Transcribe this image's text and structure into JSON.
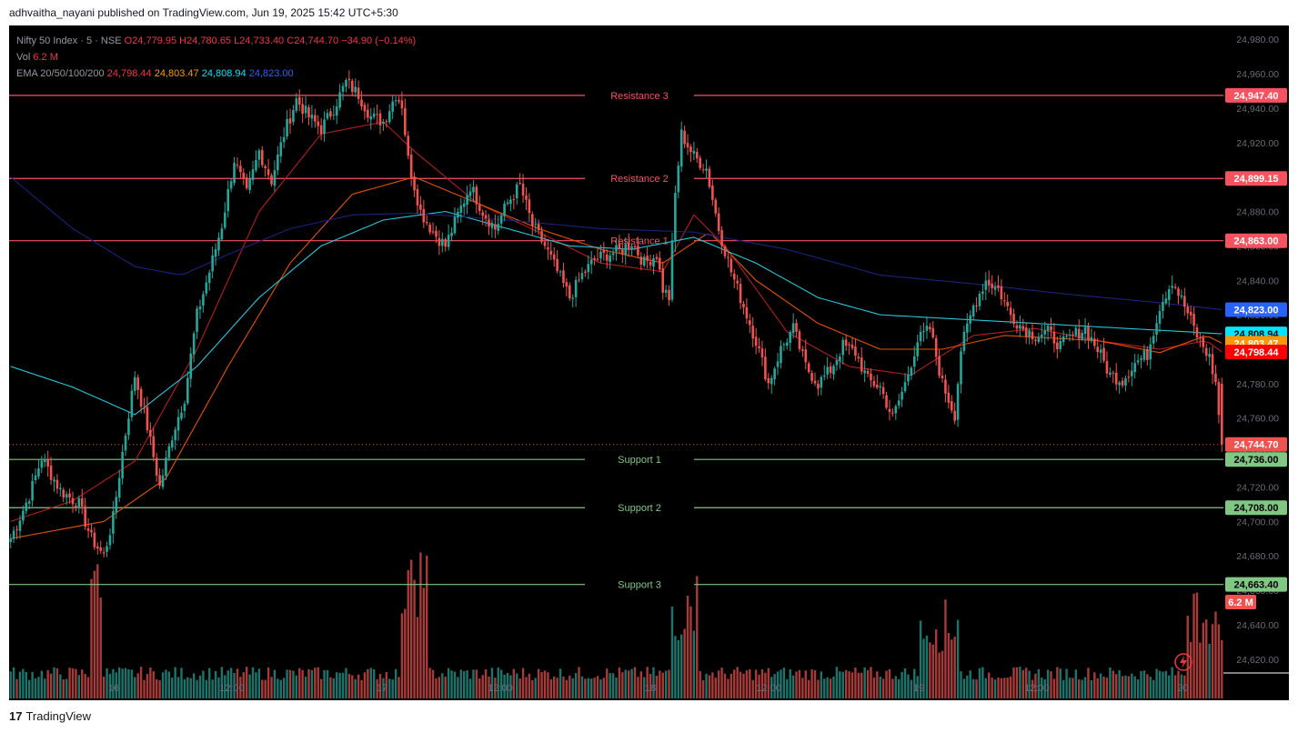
{
  "publisher": "adhvaitha_nayani published on TradingView.com, Jun 19, 2025 15:42 UTC+5:30",
  "footer": {
    "logo_mark": "17",
    "logo_text": "TradingView"
  },
  "legend": {
    "symbol": "Nifty 50 Index · 5 · NSE",
    "ohlc_o": "O24,779.95",
    "ohlc_h": "H24,780.65",
    "ohlc_l": "L24,733.40",
    "ohlc_c": "C24,744.70",
    "change": "−34.90 (−0.14%)",
    "vol_label": "Vol",
    "vol_value": "6.2 M",
    "ema_label": "EMA 20/50/100/200",
    "ema20": "24,798.44",
    "ema50": "24,803.47",
    "ema100": "24,808.94",
    "ema200": "24,823.00"
  },
  "colors": {
    "background": "#000000",
    "up": "#26a69a",
    "down": "#ef5350",
    "resistance": "#f7525f",
    "support": "#81c784",
    "ema20": "#b71c1c",
    "ema50": "#e65100",
    "ema100": "#26c6da",
    "ema200": "#1a237e"
  },
  "chart_data": {
    "type": "candlestick",
    "title": "Nifty 50 Index · 5 · NSE",
    "x_ticks": [
      "16",
      "12:00",
      "17",
      "12:00",
      "18",
      "12:00",
      "19",
      "12:00",
      "20"
    ],
    "y_ticks": [
      "24,980.00",
      "24,960.00",
      "24,940.00",
      "24,920.00",
      "24,900.00",
      "24,880.00",
      "24,860.00",
      "24,840.00",
      "24,820.00",
      "24,800.00",
      "24,780.00",
      "24,760.00",
      "24,740.00",
      "24,720.00",
      "24,700.00",
      "24,680.00",
      "24,660.00",
      "24,640.00",
      "24,620.00"
    ],
    "ylim": [
      24612,
      24988
    ],
    "levels": [
      {
        "name": "Resistance 3",
        "value": 24947.4,
        "label": "24,947.40",
        "kind": "resistance"
      },
      {
        "name": "Resistance 2",
        "value": 24899.15,
        "label": "24,899.15",
        "kind": "resistance"
      },
      {
        "name": "Resistance 1",
        "value": 24863.0,
        "label": "24,863.00",
        "kind": "resistance"
      },
      {
        "name": "Support 1",
        "value": 24736.0,
        "label": "24,736.00",
        "kind": "support"
      },
      {
        "name": "Support 2",
        "value": 24708.0,
        "label": "24,708.00",
        "kind": "support"
      },
      {
        "name": "Support 3",
        "value": 24663.4,
        "label": "24,663.40",
        "kind": "support"
      }
    ],
    "last_price": {
      "value": 24744.7,
      "label": "24,744.70"
    },
    "ema_tags": [
      {
        "value": 24823.0,
        "label": "24,823.00",
        "color": "#2962ff"
      },
      {
        "value": 24808.94,
        "label": "24,808.94",
        "color": "#00e5ff"
      },
      {
        "value": 24803.47,
        "label": "24,803.47",
        "color": "#ff9800"
      },
      {
        "value": 24798.44,
        "label": "24,798.44",
        "color": "#ff0000"
      }
    ],
    "volume_tag": "6.2 M",
    "anchors": [
      [
        0,
        24690
      ],
      [
        6,
        24715
      ],
      [
        10,
        24737
      ],
      [
        16,
        24718
      ],
      [
        22,
        24710
      ],
      [
        26,
        24690
      ],
      [
        30,
        24680
      ],
      [
        33,
        24702
      ],
      [
        36,
        24740
      ],
      [
        40,
        24785
      ],
      [
        44,
        24755
      ],
      [
        48,
        24720
      ],
      [
        52,
        24750
      ],
      [
        56,
        24772
      ],
      [
        60,
        24820
      ],
      [
        64,
        24845
      ],
      [
        68,
        24872
      ],
      [
        72,
        24910
      ],
      [
        76,
        24890
      ],
      [
        80,
        24915
      ],
      [
        84,
        24898
      ],
      [
        88,
        24925
      ],
      [
        92,
        24945
      ],
      [
        96,
        24935
      ],
      [
        100,
        24928
      ],
      [
        104,
        24940
      ],
      [
        108,
        24955
      ],
      [
        112,
        24948
      ],
      [
        116,
        24935
      ],
      [
        120,
        24932
      ],
      [
        124,
        24948
      ],
      [
        126,
        24942
      ],
      [
        128,
        24910
      ],
      [
        132,
        24880
      ],
      [
        136,
        24868
      ],
      [
        140,
        24860
      ],
      [
        144,
        24878
      ],
      [
        148,
        24895
      ],
      [
        152,
        24880
      ],
      [
        156,
        24870
      ],
      [
        160,
        24885
      ],
      [
        164,
        24895
      ],
      [
        168,
        24872
      ],
      [
        172,
        24860
      ],
      [
        176,
        24845
      ],
      [
        180,
        24830
      ],
      [
        184,
        24843
      ],
      [
        188,
        24852
      ],
      [
        192,
        24855
      ],
      [
        196,
        24857
      ],
      [
        200,
        24862
      ],
      [
        204,
        24850
      ],
      [
        208,
        24855
      ],
      [
        210,
        24835
      ],
      [
        212,
        24830
      ],
      [
        214,
        24890
      ],
      [
        216,
        24925
      ],
      [
        220,
        24912
      ],
      [
        224,
        24905
      ],
      [
        228,
        24870
      ],
      [
        232,
        24845
      ],
      [
        236,
        24825
      ],
      [
        240,
        24805
      ],
      [
        244,
        24780
      ],
      [
        248,
        24800
      ],
      [
        252,
        24812
      ],
      [
        256,
        24790
      ],
      [
        260,
        24780
      ],
      [
        264,
        24788
      ],
      [
        268,
        24802
      ],
      [
        272,
        24798
      ],
      [
        276,
        24782
      ],
      [
        280,
        24778
      ],
      [
        284,
        24760
      ],
      [
        288,
        24780
      ],
      [
        292,
        24805
      ],
      [
        296,
        24812
      ],
      [
        300,
        24780
      ],
      [
        304,
        24762
      ],
      [
        306,
        24800
      ],
      [
        310,
        24825
      ],
      [
        314,
        24840
      ],
      [
        318,
        24835
      ],
      [
        322,
        24820
      ],
      [
        326,
        24812
      ],
      [
        330,
        24808
      ],
      [
        334,
        24810
      ],
      [
        338,
        24802
      ],
      [
        342,
        24808
      ],
      [
        346,
        24812
      ],
      [
        350,
        24800
      ],
      [
        354,
        24785
      ],
      [
        358,
        24782
      ],
      [
        362,
        24792
      ],
      [
        366,
        24797
      ],
      [
        370,
        24825
      ],
      [
        374,
        24840
      ],
      [
        378,
        24825
      ],
      [
        382,
        24808
      ],
      [
        386,
        24795
      ],
      [
        388,
        24780
      ],
      [
        390,
        24744.7
      ]
    ],
    "ema_series": [
      {
        "name": "EMA 20",
        "color": "#b71c1c",
        "points": [
          [
            0,
            24700
          ],
          [
            20,
            24712
          ],
          [
            40,
            24735
          ],
          [
            60,
            24800
          ],
          [
            80,
            24880
          ],
          [
            100,
            24925
          ],
          [
            120,
            24932
          ],
          [
            130,
            24915
          ],
          [
            150,
            24885
          ],
          [
            170,
            24868
          ],
          [
            190,
            24850
          ],
          [
            210,
            24845
          ],
          [
            220,
            24878
          ],
          [
            230,
            24860
          ],
          [
            250,
            24810
          ],
          [
            270,
            24790
          ],
          [
            290,
            24785
          ],
          [
            310,
            24808
          ],
          [
            330,
            24812
          ],
          [
            350,
            24805
          ],
          [
            370,
            24800
          ],
          [
            385,
            24805
          ],
          [
            390,
            24798.44
          ]
        ]
      },
      {
        "name": "EMA 50",
        "color": "#e65100",
        "points": [
          [
            0,
            24690
          ],
          [
            30,
            24700
          ],
          [
            50,
            24725
          ],
          [
            70,
            24790
          ],
          [
            90,
            24850
          ],
          [
            110,
            24890
          ],
          [
            130,
            24900
          ],
          [
            150,
            24885
          ],
          [
            170,
            24870
          ],
          [
            190,
            24858
          ],
          [
            210,
            24850
          ],
          [
            225,
            24868
          ],
          [
            240,
            24840
          ],
          [
            260,
            24815
          ],
          [
            280,
            24800
          ],
          [
            300,
            24800
          ],
          [
            320,
            24808
          ],
          [
            350,
            24805
          ],
          [
            370,
            24798
          ],
          [
            385,
            24808
          ],
          [
            390,
            24803.47
          ]
        ]
      },
      {
        "name": "EMA 100",
        "color": "#26c6da",
        "points": [
          [
            0,
            24790
          ],
          [
            20,
            24778
          ],
          [
            40,
            24762
          ],
          [
            60,
            24790
          ],
          [
            80,
            24830
          ],
          [
            100,
            24860
          ],
          [
            120,
            24875
          ],
          [
            140,
            24880
          ],
          [
            160,
            24870
          ],
          [
            180,
            24860
          ],
          [
            200,
            24858
          ],
          [
            220,
            24865
          ],
          [
            240,
            24850
          ],
          [
            260,
            24830
          ],
          [
            280,
            24820
          ],
          [
            300,
            24818
          ],
          [
            330,
            24815
          ],
          [
            360,
            24812
          ],
          [
            380,
            24810
          ],
          [
            390,
            24808.94
          ]
        ]
      },
      {
        "name": "EMA 200",
        "color": "#1a237e",
        "points": [
          [
            0,
            24900
          ],
          [
            20,
            24870
          ],
          [
            40,
            24848
          ],
          [
            55,
            24843
          ],
          [
            70,
            24855
          ],
          [
            90,
            24870
          ],
          [
            110,
            24878
          ],
          [
            130,
            24879
          ],
          [
            160,
            24875
          ],
          [
            190,
            24870
          ],
          [
            220,
            24868
          ],
          [
            250,
            24858
          ],
          [
            280,
            24843
          ],
          [
            310,
            24838
          ],
          [
            340,
            24832
          ],
          [
            370,
            24827
          ],
          [
            390,
            24823.0
          ]
        ]
      }
    ]
  }
}
